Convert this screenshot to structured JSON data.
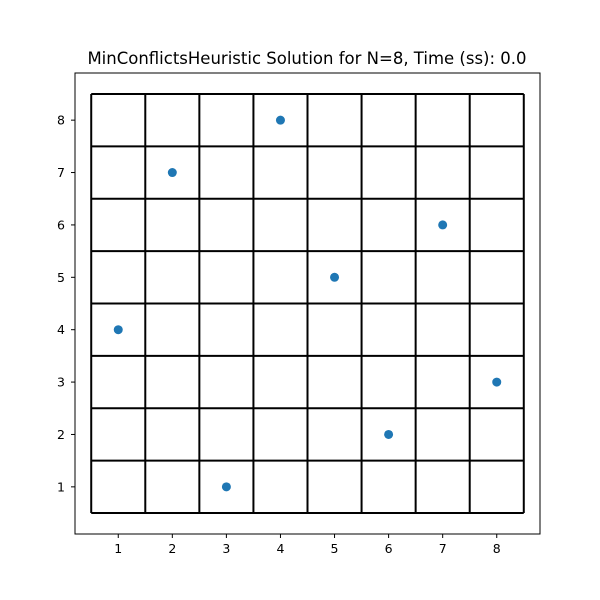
{
  "chart_data": {
    "type": "scatter",
    "title": "MinConflictsHeuristic Solution for N=8, Time (ss): 0.0",
    "xlabel": "",
    "ylabel": "",
    "board_size": 8,
    "x": [
      1,
      2,
      3,
      4,
      5,
      6,
      7,
      8
    ],
    "y": [
      4,
      7,
      1,
      8,
      5,
      2,
      6,
      3
    ],
    "xticks": [
      "1",
      "2",
      "3",
      "4",
      "5",
      "6",
      "7",
      "8"
    ],
    "yticks": [
      "1",
      "2",
      "3",
      "4",
      "5",
      "6",
      "7",
      "8"
    ],
    "xlim": [
      0.2,
      8.8
    ],
    "ylim": [
      0.1,
      8.9
    ],
    "grid": true,
    "legend": "none",
    "marker_color": "#1f77b4",
    "grid_color": "#000000"
  }
}
